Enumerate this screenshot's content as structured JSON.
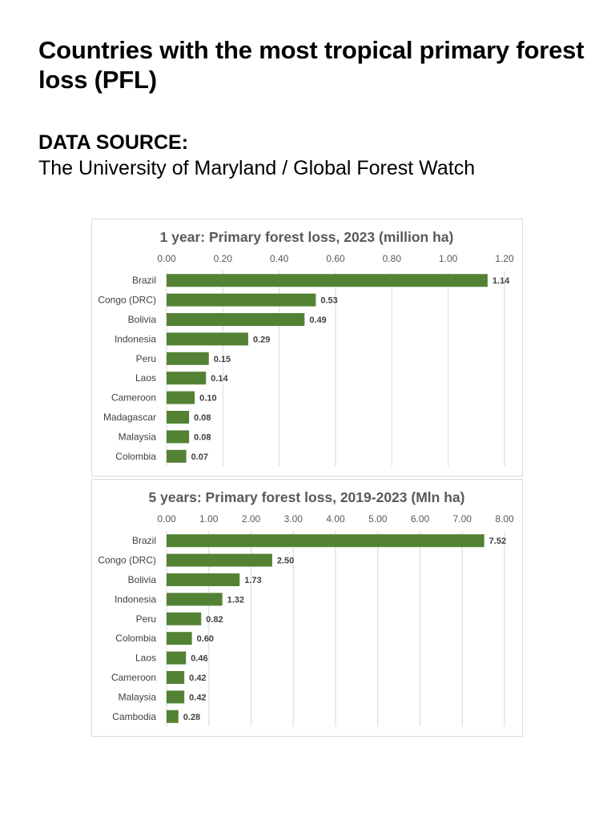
{
  "page": {
    "title": "Countries with the most tropical primary forest loss (PFL)",
    "source_label": "DATA SOURCE:",
    "source_text": "The University of Maryland / Global Forest Watch"
  },
  "colors": {
    "bar": "#548235"
  },
  "chart_data": [
    {
      "type": "bar",
      "orientation": "horizontal",
      "title": "1 year: Primary forest loss, 2023 (million ha)",
      "categories": [
        "Brazil",
        "Congo (DRC)",
        "Bolivia",
        "Indonesia",
        "Peru",
        "Laos",
        "Cameroon",
        "Madagascar",
        "Malaysia",
        "Colombia"
      ],
      "values": [
        1.14,
        0.53,
        0.49,
        0.29,
        0.15,
        0.14,
        0.1,
        0.08,
        0.08,
        0.07
      ],
      "value_labels": [
        "1.14",
        "0.53",
        "0.49",
        "0.29",
        "0.15",
        "0.14",
        "0.10",
        "0.08",
        "0.08",
        "0.07"
      ],
      "xlim": [
        0,
        1.2
      ],
      "ticks": [
        "0.00",
        "0.20",
        "0.40",
        "0.60",
        "0.80",
        "1.00",
        "1.20"
      ],
      "axis_position": "top",
      "grid": true,
      "legend": "none"
    },
    {
      "type": "bar",
      "orientation": "horizontal",
      "title": "5 years: Primary forest loss, 2019-2023 (Mln ha)",
      "categories": [
        "Brazil",
        "Congo (DRC)",
        "Bolivia",
        "Indonesia",
        "Peru",
        "Colombia",
        "Laos",
        "Cameroon",
        "Malaysia",
        "Cambodia"
      ],
      "values": [
        7.52,
        2.5,
        1.73,
        1.32,
        0.82,
        0.6,
        0.46,
        0.42,
        0.42,
        0.28
      ],
      "value_labels": [
        "7.52",
        "2.50",
        "1.73",
        "1.32",
        "0.82",
        "0.60",
        "0.46",
        "0.42",
        "0.42",
        "0.28"
      ],
      "xlim": [
        0,
        8
      ],
      "ticks": [
        "0.00",
        "1.00",
        "2.00",
        "3.00",
        "4.00",
        "5.00",
        "6.00",
        "7.00",
        "8.00"
      ],
      "axis_position": "top",
      "grid": true,
      "legend": "none"
    }
  ]
}
